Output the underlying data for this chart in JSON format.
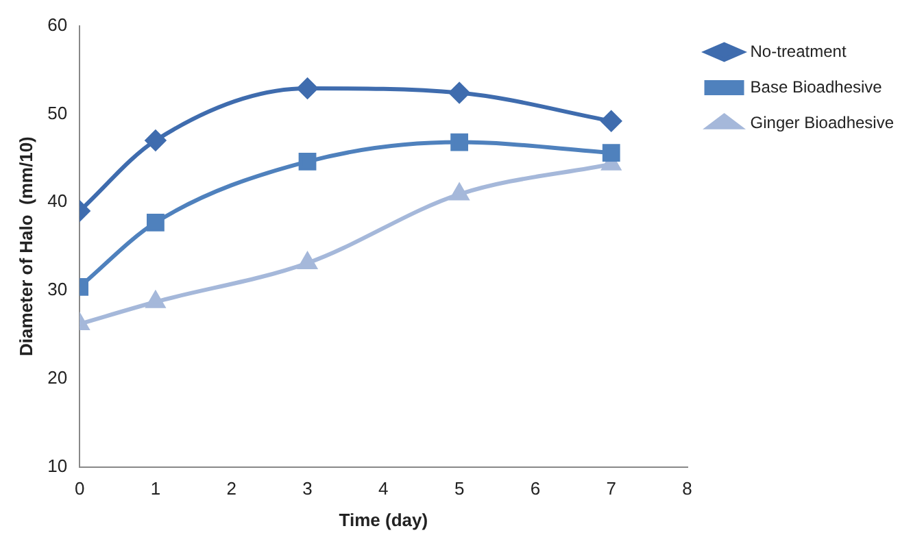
{
  "chart_data": {
    "type": "line",
    "xlabel": "Time (day)",
    "ylabel": "Diameter of Halo  (mm/10)",
    "x": [
      0,
      1,
      3,
      5,
      7
    ],
    "xlim": [
      0,
      8
    ],
    "xticks": [
      0,
      1,
      2,
      3,
      4,
      5,
      6,
      7,
      8
    ],
    "ylim": [
      10,
      60
    ],
    "yticks": [
      10,
      20,
      30,
      40,
      50,
      60
    ],
    "grid": false,
    "legend": "top right",
    "line_style": "solid",
    "series": [
      {
        "name": "No-treatment",
        "color": "#3f6cae",
        "marker": "diamond",
        "values": [
          39.0,
          47.0,
          52.9,
          52.4,
          49.2
        ]
      },
      {
        "name": "Base Bioadhesive",
        "color": "#4f81bd",
        "marker": "square",
        "values": [
          30.4,
          37.7,
          44.6,
          46.8,
          45.6
        ]
      },
      {
        "name": "Ginger Bioadhesive",
        "color": "#a5b8da",
        "marker": "triangle",
        "values": [
          26.2,
          28.7,
          33.1,
          40.9,
          44.3
        ]
      }
    ]
  }
}
